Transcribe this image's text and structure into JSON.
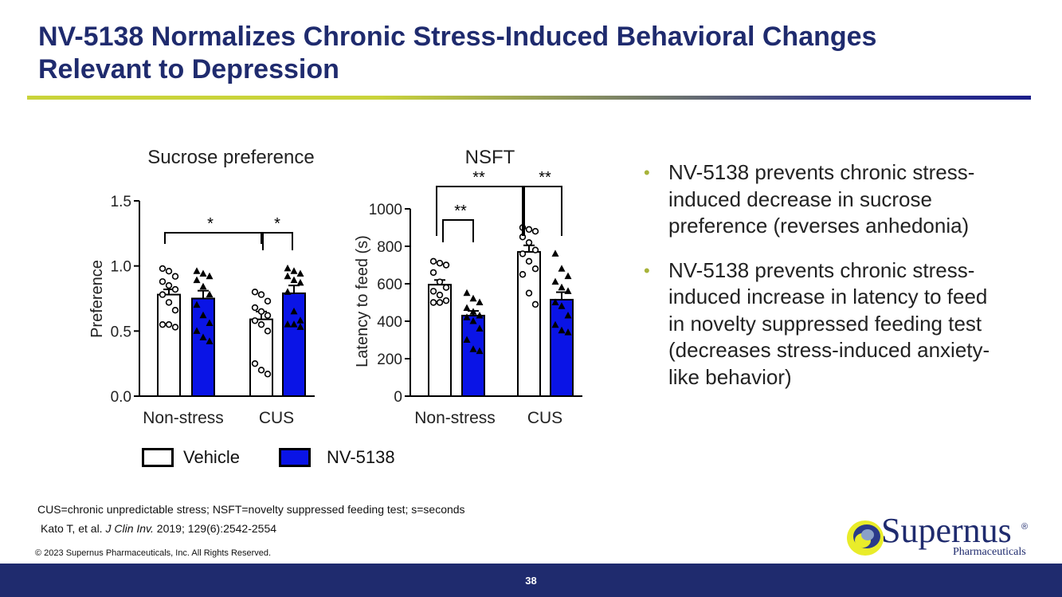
{
  "title_line1": "NV-5138 Normalizes Chronic Stress-Induced Behavioral Changes",
  "title_line2": "Relevant to Depression",
  "colors": {
    "title": "#1f2b6e",
    "nv5138": "#0a14e6",
    "vehicle": "#ffffff",
    "bullet": "#a7b33a",
    "footer": "#1f2b6e"
  },
  "chart_data": [
    {
      "type": "bar",
      "title": "Sucrose preference",
      "ylabel": "Preference",
      "xlabel": "",
      "categories": [
        "Non-stress",
        "CUS"
      ],
      "ylim": [
        0,
        1.5
      ],
      "yticks": [
        "0.0",
        "0.5",
        "1.0",
        "1.5"
      ],
      "series": [
        {
          "name": "Vehicle",
          "values": [
            0.78,
            0.59
          ]
        },
        {
          "name": "NV-5138",
          "values": [
            0.75,
            0.79
          ]
        }
      ],
      "errors": [
        [
          0.04,
          0.06
        ],
        [
          0.06,
          0.06
        ]
      ],
      "points": {
        "vehicle": [
          [
            0.98,
            0.96,
            0.92,
            0.88,
            0.85,
            0.82,
            0.78,
            0.72,
            0.66,
            0.55,
            0.55,
            0.53
          ],
          [
            0.8,
            0.78,
            0.73,
            0.68,
            0.65,
            0.62,
            0.58,
            0.55,
            0.5,
            0.25,
            0.2,
            0.17
          ]
        ],
        "nv5138": [
          [
            0.96,
            0.94,
            0.92,
            0.89,
            0.84,
            0.78,
            0.7,
            0.62,
            0.56,
            0.5,
            0.45,
            0.42
          ],
          [
            0.98,
            0.96,
            0.94,
            0.92,
            0.89,
            0.87,
            0.8,
            0.65,
            0.58,
            0.55,
            0.55,
            0.53
          ]
        ]
      },
      "annotations": [
        "*",
        "*"
      ]
    },
    {
      "type": "bar",
      "title": "NSFT",
      "ylabel": "Latency to feed (s)",
      "xlabel": "",
      "categories": [
        "Non-stress",
        "CUS"
      ],
      "ylim": [
        0,
        1000
      ],
      "yticks": [
        "0",
        "200",
        "400",
        "600",
        "800",
        "1000"
      ],
      "series": [
        {
          "name": "Vehicle",
          "values": [
            595,
            770
          ]
        },
        {
          "name": "NV-5138",
          "values": [
            430,
            515
          ]
        }
      ],
      "errors": [
        [
          25,
          35
        ],
        [
          25,
          40
        ]
      ],
      "points": {
        "vehicle": [
          [
            720,
            710,
            700,
            660,
            610,
            580,
            560,
            540,
            510,
            500,
            500
          ],
          [
            900,
            890,
            880,
            850,
            820,
            780,
            760,
            720,
            680,
            650,
            550,
            490
          ]
        ],
        "nv5138": [
          [
            550,
            520,
            500,
            470,
            450,
            430,
            420,
            400,
            360,
            300,
            250,
            240
          ],
          [
            760,
            680,
            640,
            610,
            580,
            560,
            500,
            480,
            430,
            380,
            350,
            340
          ]
        ]
      },
      "annotations": [
        "**",
        "**",
        "**"
      ]
    }
  ],
  "legend": {
    "vehicle": "Vehicle",
    "nv5138": "NV-5138"
  },
  "bullets": [
    "NV-5138 prevents chronic stress-induced decrease in sucrose preference (reverses anhedonia)",
    "NV-5138 prevents chronic stress-induced increase in latency to feed in novelty suppressed feeding test (decreases stress-induced anxiety-like behavior)"
  ],
  "bullet_glyph": "•",
  "footnote_abbrev": "CUS=chronic unpredictable stress; NSFT=novelty suppressed feeding test; s=seconds",
  "ref_pre": "Kato T, et al. ",
  "ref_journal": "J Clin Inv.",
  "ref_post": " 2019; 129(6):2542-2554",
  "copyright": "© 2023 Supernus Pharmaceuticals, Inc. All Rights Reserved.",
  "logo_word": "Supernus",
  "logo_sub": "Pharmaceuticals",
  "logo_reg": "®",
  "page_number": "38"
}
